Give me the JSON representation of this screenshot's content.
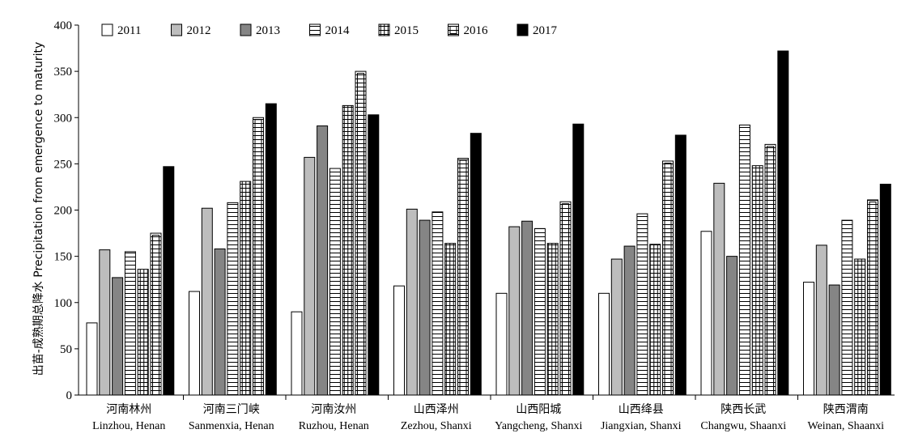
{
  "chart_data": {
    "type": "bar",
    "title": "",
    "xlabel": "",
    "ylabel": "出苗-成熟期总降水 Precipitation from emergence to maturity",
    "ylim": [
      0,
      400
    ],
    "yticks": [
      0,
      50,
      100,
      150,
      200,
      250,
      300,
      350,
      400
    ],
    "legend_position": "top-left",
    "categories": [
      {
        "zh": "河南林州",
        "en": "Linzhou, Henan"
      },
      {
        "zh": "河南三门峡",
        "en": "Sanmenxia, Henan"
      },
      {
        "zh": "河南汝州",
        "en": "Ruzhou, Henan"
      },
      {
        "zh": "山西泽州",
        "en": "Zezhou, Shanxi"
      },
      {
        "zh": "山西阳城",
        "en": "Yangcheng, Shanxi"
      },
      {
        "zh": "山西绛县",
        "en": "Jiangxian, Shanxi"
      },
      {
        "zh": "陕西长武",
        "en": "Changwu, Shaanxi"
      },
      {
        "zh": "陕西渭南",
        "en": "Weinan, Shaanxi"
      }
    ],
    "series": [
      {
        "name": "2011",
        "pattern": "white",
        "values": [
          78,
          112,
          90,
          118,
          110,
          110,
          177,
          122
        ]
      },
      {
        "name": "2012",
        "pattern": "light-gray",
        "values": [
          157,
          202,
          257,
          201,
          182,
          147,
          229,
          162
        ]
      },
      {
        "name": "2013",
        "pattern": "dark-gray",
        "values": [
          127,
          158,
          291,
          189,
          188,
          161,
          150,
          119
        ]
      },
      {
        "name": "2014",
        "pattern": "horizontal-lines",
        "values": [
          155,
          208,
          245,
          198,
          180,
          196,
          292,
          189
        ]
      },
      {
        "name": "2015",
        "pattern": "grid",
        "values": [
          136,
          231,
          313,
          164,
          164,
          163,
          248,
          147
        ]
      },
      {
        "name": "2016",
        "pattern": "horizontal-lines-boxed",
        "values": [
          175,
          300,
          350,
          256,
          209,
          253,
          271,
          211
        ]
      },
      {
        "name": "2017",
        "pattern": "black",
        "values": [
          247,
          315,
          303,
          283,
          293,
          281,
          372,
          228
        ]
      }
    ]
  },
  "colors": {
    "white": "#ffffff",
    "light_gray": "#bdbdbd",
    "dark_gray": "#858585",
    "black": "#000000",
    "stroke": "#000000"
  }
}
